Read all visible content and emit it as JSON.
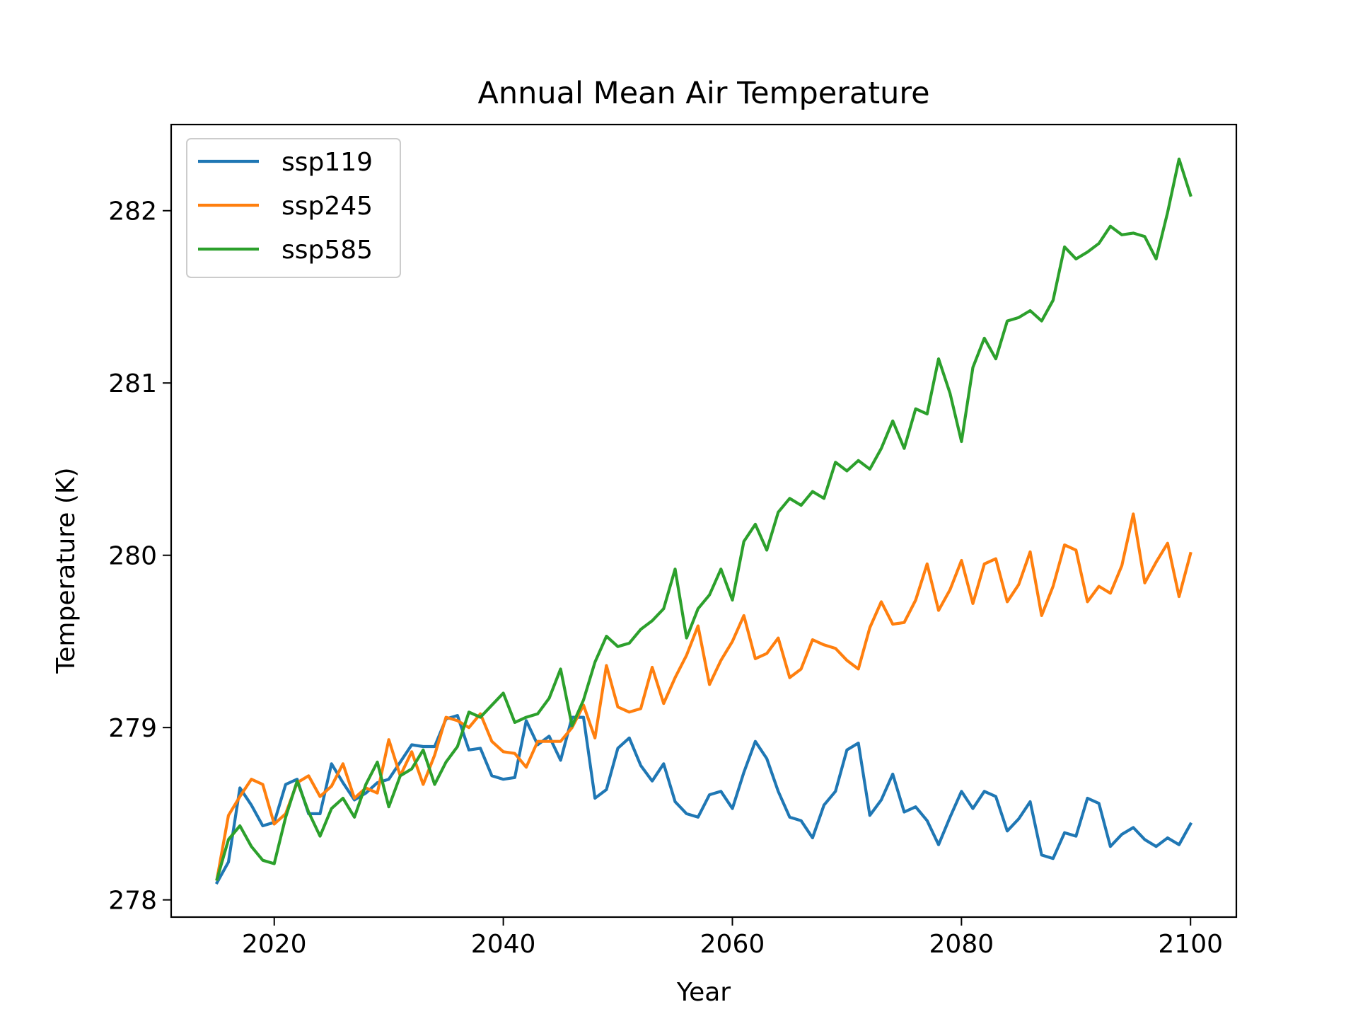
{
  "chart_data": {
    "type": "line",
    "title": "Annual Mean Air Temperature",
    "xlabel": "Year",
    "ylabel": "Temperature (K)",
    "xlim": [
      2011,
      2104
    ],
    "ylim": [
      277.9,
      282.5
    ],
    "xticks": [
      2020,
      2040,
      2060,
      2080,
      2100
    ],
    "yticks": [
      278,
      279,
      280,
      281,
      282
    ],
    "x_start": 2015,
    "grid": false,
    "legend_position": "top-left",
    "series": [
      {
        "name": "ssp119",
        "color": "#1f77b4",
        "values": [
          278.1,
          278.22,
          278.65,
          278.55,
          278.43,
          278.45,
          278.67,
          278.7,
          278.5,
          278.5,
          278.79,
          278.68,
          278.58,
          278.62,
          278.68,
          278.7,
          278.8,
          278.9,
          278.89,
          278.89,
          279.05,
          279.07,
          278.87,
          278.88,
          278.72,
          278.7,
          278.71,
          279.04,
          278.9,
          278.95,
          278.81,
          279.06,
          279.06,
          278.59,
          278.64,
          278.88,
          278.94,
          278.78,
          278.69,
          278.79,
          278.57,
          278.5,
          278.48,
          278.61,
          278.63,
          278.53,
          278.74,
          278.92,
          278.82,
          278.63,
          278.48,
          278.46,
          278.36,
          278.55,
          278.63,
          278.87,
          278.91,
          278.49,
          278.58,
          278.73,
          278.51,
          278.54,
          278.46,
          278.32,
          278.48,
          278.63,
          278.53,
          278.63,
          278.6,
          278.4,
          278.47,
          278.57,
          278.26,
          278.24,
          278.39,
          278.37,
          278.59,
          278.56,
          278.31,
          278.38,
          278.42,
          278.35,
          278.31,
          278.36,
          278.32,
          278.44
        ]
      },
      {
        "name": "ssp245",
        "color": "#ff7f0e",
        "values": [
          278.12,
          278.49,
          278.6,
          278.7,
          278.67,
          278.44,
          278.5,
          278.68,
          278.72,
          278.6,
          278.66,
          278.79,
          278.59,
          278.65,
          278.62,
          278.93,
          278.72,
          278.86,
          278.67,
          278.84,
          279.06,
          279.04,
          279.0,
          279.08,
          278.92,
          278.86,
          278.85,
          278.77,
          278.92,
          278.92,
          278.92,
          279.0,
          279.13,
          278.94,
          279.36,
          279.12,
          279.09,
          279.11,
          279.35,
          279.14,
          279.29,
          279.42,
          279.59,
          279.25,
          279.39,
          279.5,
          279.65,
          279.4,
          279.43,
          279.52,
          279.29,
          279.34,
          279.51,
          279.48,
          279.46,
          279.39,
          279.34,
          279.58,
          279.73,
          279.6,
          279.61,
          279.74,
          279.95,
          279.68,
          279.8,
          279.97,
          279.72,
          279.95,
          279.98,
          279.73,
          279.83,
          280.02,
          279.65,
          279.82,
          280.06,
          280.03,
          279.73,
          279.82,
          279.78,
          279.94,
          280.24,
          279.84,
          279.96,
          280.07,
          279.76,
          280.01
        ]
      },
      {
        "name": "ssp585",
        "color": "#2ca02c",
        "values": [
          278.12,
          278.35,
          278.43,
          278.31,
          278.23,
          278.21,
          278.48,
          278.69,
          278.51,
          278.37,
          278.53,
          278.59,
          278.48,
          278.67,
          278.8,
          278.54,
          278.72,
          278.76,
          278.87,
          278.67,
          278.8,
          278.89,
          279.09,
          279.06,
          279.13,
          279.2,
          279.03,
          279.06,
          279.08,
          279.17,
          279.34,
          279.01,
          279.16,
          279.38,
          279.53,
          279.47,
          279.49,
          279.57,
          279.62,
          279.69,
          279.92,
          279.52,
          279.69,
          279.77,
          279.92,
          279.74,
          280.08,
          280.18,
          280.03,
          280.25,
          280.33,
          280.29,
          280.37,
          280.33,
          280.54,
          280.49,
          280.55,
          280.5,
          280.62,
          280.78,
          280.62,
          280.85,
          280.82,
          281.14,
          280.94,
          280.66,
          281.09,
          281.26,
          281.14,
          281.36,
          281.38,
          281.42,
          281.36,
          281.48,
          281.79,
          281.72,
          281.76,
          281.81,
          281.91,
          281.86,
          281.87,
          281.85,
          281.72,
          281.99,
          282.3,
          282.09
        ]
      }
    ]
  }
}
